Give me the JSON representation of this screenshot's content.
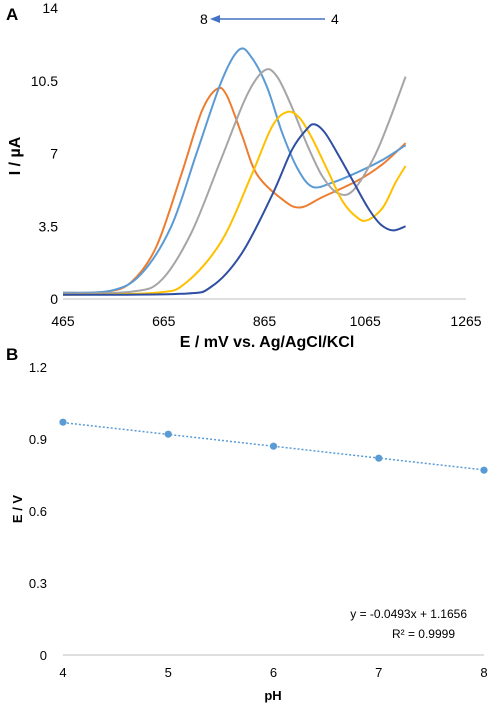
{
  "chart_data": [
    {
      "panel_label": "A",
      "type": "line",
      "xlabel": "E / mV vs. Ag/AgCl/KCl",
      "ylabel": "I / µA",
      "xlim": [
        465,
        1265
      ],
      "ylim": [
        0,
        14
      ],
      "xticks": [
        "465",
        "665",
        "865",
        "1065",
        "1265"
      ],
      "yticks": [
        "0",
        "3.5",
        "7",
        "10.5",
        "14"
      ],
      "grid": false,
      "annotation": {
        "from_label": "4",
        "to_label": "8",
        "arrow_color": "#4472c4"
      },
      "series": [
        {
          "color": "#ed7d31",
          "points": [
            [
              465,
              0.3
            ],
            [
              550,
              0.35
            ],
            [
              600,
              0.8
            ],
            [
              650,
              2.5
            ],
            [
              700,
              6.0
            ],
            [
              740,
              9.0
            ],
            [
              770,
              10.1
            ],
            [
              790,
              9.8
            ],
            [
              820,
              7.9
            ],
            [
              850,
              6.0
            ],
            [
              900,
              4.8
            ],
            [
              935,
              4.4
            ],
            [
              980,
              4.9
            ],
            [
              1050,
              5.7
            ],
            [
              1100,
              6.5
            ],
            [
              1145,
              7.5
            ]
          ]
        },
        {
          "color": "#5b9bd5",
          "points": [
            [
              465,
              0.3
            ],
            [
              560,
              0.4
            ],
            [
              620,
              1.2
            ],
            [
              680,
              3.5
            ],
            [
              730,
              7.0
            ],
            [
              780,
              10.5
            ],
            [
              815,
              12.0
            ],
            [
              840,
              11.6
            ],
            [
              870,
              10.2
            ],
            [
              900,
              8.0
            ],
            [
              930,
              6.3
            ],
            [
              960,
              5.4
            ],
            [
              1000,
              5.6
            ],
            [
              1050,
              6.1
            ],
            [
              1100,
              6.7
            ],
            [
              1145,
              7.4
            ]
          ]
        },
        {
          "color": "#a5a5a5",
          "points": [
            [
              465,
              0.25
            ],
            [
              600,
              0.35
            ],
            [
              660,
              0.9
            ],
            [
              720,
              3.2
            ],
            [
              780,
              6.8
            ],
            [
              830,
              9.8
            ],
            [
              865,
              11.0
            ],
            [
              890,
              10.7
            ],
            [
              920,
              9.2
            ],
            [
              950,
              7.4
            ],
            [
              980,
              5.9
            ],
            [
              1010,
              5.1
            ],
            [
              1040,
              5.2
            ],
            [
              1080,
              6.7
            ],
            [
              1110,
              8.4
            ],
            [
              1145,
              10.7
            ]
          ]
        },
        {
          "color": "#ffc000",
          "points": [
            [
              465,
              0.2
            ],
            [
              650,
              0.3
            ],
            [
              710,
              0.8
            ],
            [
              780,
              2.8
            ],
            [
              840,
              6.0
            ],
            [
              880,
              8.3
            ],
            [
              910,
              9.0
            ],
            [
              935,
              8.7
            ],
            [
              960,
              7.7
            ],
            [
              990,
              6.2
            ],
            [
              1020,
              4.7
            ],
            [
              1050,
              3.9
            ],
            [
              1070,
              3.8
            ],
            [
              1100,
              4.4
            ],
            [
              1125,
              5.6
            ],
            [
              1145,
              6.4
            ]
          ]
        },
        {
          "color": "#2e4fa3",
          "points": [
            [
              465,
              0.2
            ],
            [
              700,
              0.25
            ],
            [
              760,
              0.6
            ],
            [
              820,
              2.2
            ],
            [
              880,
              5.0
            ],
            [
              920,
              7.2
            ],
            [
              950,
              8.2
            ],
            [
              965,
              8.4
            ],
            [
              985,
              8.0
            ],
            [
              1010,
              7.0
            ],
            [
              1040,
              5.7
            ],
            [
              1070,
              4.4
            ],
            [
              1095,
              3.6
            ],
            [
              1120,
              3.3
            ],
            [
              1145,
              3.5
            ]
          ]
        }
      ]
    },
    {
      "panel_label": "B",
      "type": "scatter",
      "xlabel": "pH",
      "ylabel": "E / V",
      "xlim": [
        4,
        8
      ],
      "ylim": [
        0,
        1.2
      ],
      "xticks": [
        "4",
        "5",
        "6",
        "7",
        "8"
      ],
      "yticks": [
        "0",
        "0.3",
        "0.6",
        "0.9",
        "1.2"
      ],
      "grid": false,
      "color": "#5b9bd5",
      "x": [
        4,
        5,
        6,
        7,
        8
      ],
      "y": [
        0.97,
        0.92,
        0.87,
        0.82,
        0.77
      ],
      "trendline": {
        "slope": -0.0493,
        "intercept": 1.1656,
        "style": "dotted"
      },
      "equation": "y = -0.0493x + 1.1656",
      "r_squared": "R² = 0.9999"
    }
  ]
}
